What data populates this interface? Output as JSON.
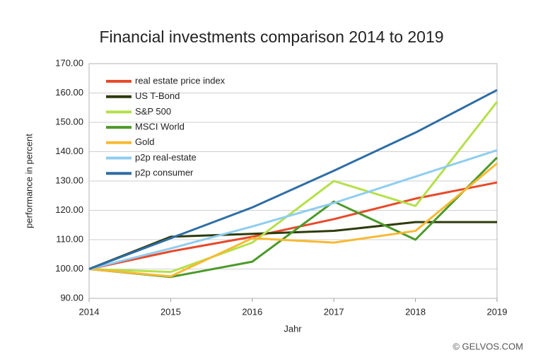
{
  "chart_data": {
    "type": "line",
    "title": "Financial investments comparison 2014 to 2019",
    "x_label": "Jahr",
    "y_label": "performance in percent",
    "credit": "© GELVOS.COM",
    "x": [
      2014,
      2015,
      2016,
      2017,
      2018,
      2019
    ],
    "xlim": [
      2014,
      2019
    ],
    "xticks": [
      2014,
      2015,
      2016,
      2017,
      2018,
      2019
    ],
    "ylim": [
      90,
      170
    ],
    "yticks": [
      {
        "value": 90,
        "label": "90.00"
      },
      {
        "value": 100,
        "label": "100.00"
      },
      {
        "value": 110,
        "label": "110.00"
      },
      {
        "value": 120,
        "label": "120.00"
      },
      {
        "value": 130,
        "label": "130.00"
      },
      {
        "value": 140,
        "label": "140.00"
      },
      {
        "value": 150,
        "label": "150.00"
      },
      {
        "value": 160,
        "label": "160.00"
      },
      {
        "value": 170,
        "label": "170.00"
      }
    ],
    "grid": true,
    "legend": "upper left",
    "series": [
      {
        "name": "real estate price index",
        "color": "#e8492a",
        "values": [
          100,
          106,
          111,
          117,
          124,
          129.5
        ]
      },
      {
        "name": "US T-Bond",
        "color": "#2d3b0b",
        "values": [
          100,
          111,
          112,
          113,
          116,
          116
        ]
      },
      {
        "name": "S&P 500",
        "color": "#b5e04a",
        "values": [
          100,
          99,
          109,
          130,
          121.5,
          157
        ]
      },
      {
        "name": "MSCI World",
        "color": "#4c9a2a",
        "values": [
          100,
          97.3,
          102.5,
          123,
          110,
          138
        ]
      },
      {
        "name": "Gold",
        "color": "#f8b932",
        "values": [
          100,
          97.5,
          110.5,
          109,
          113,
          136
        ]
      },
      {
        "name": "p2p real-estate",
        "color": "#8fcdf0",
        "values": [
          100,
          107,
          114.5,
          122.5,
          131.5,
          140.5
        ]
      },
      {
        "name": "p2p consumer",
        "color": "#2e6da4",
        "values": [
          100,
          110.5,
          121,
          133.5,
          146.5,
          161
        ]
      }
    ]
  }
}
